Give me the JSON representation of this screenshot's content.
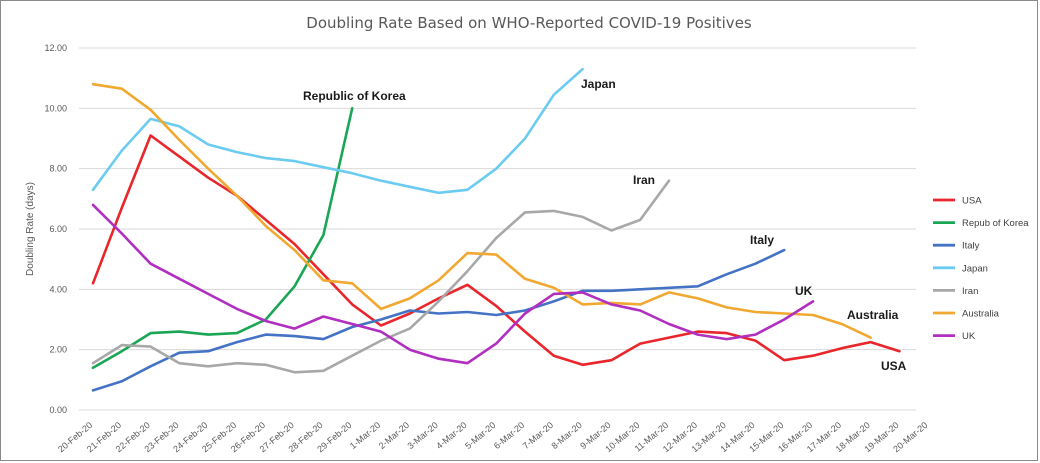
{
  "chart_data": {
    "type": "line",
    "title": "Doubling Rate Based on WHO-Reported COVID-19 Positives",
    "ylabel": "Doubling Rate (days)",
    "xlabel": "",
    "ylim": [
      0,
      12
    ],
    "yticks": [
      "0.00",
      "2.00",
      "4.00",
      "6.00",
      "8.00",
      "10.00",
      "12.00"
    ],
    "grid": true,
    "legend_position": "right",
    "categories": [
      "20-Feb-20",
      "21-Feb-20",
      "22-Feb-20",
      "23-Feb-20",
      "24-Feb-20",
      "25-Feb-20",
      "26-Feb-20",
      "27-Feb-20",
      "28-Feb-20",
      "29-Feb-20",
      "1-Mar-20",
      "2-Mar-20",
      "3-Mar-20",
      "4-Mar-20",
      "5-Mar-20",
      "6-Mar-20",
      "7-Mar-20",
      "8-Mar-20",
      "9-Mar-20",
      "10-Mar-20",
      "11-Mar-20",
      "12-Mar-20",
      "13-Mar-20",
      "14-Mar-20",
      "15-Mar-20",
      "16-Mar-20",
      "17-Mar-20",
      "18-Mar-20",
      "19-Mar-20",
      "20-Mar-20"
    ],
    "series": [
      {
        "name": "USA",
        "legend": "USA",
        "label": "USA",
        "color": "#e8262b",
        "values": [
          4.2,
          6.7,
          9.1,
          8.4,
          7.7,
          7.1,
          6.3,
          5.5,
          4.5,
          3.5,
          2.8,
          3.2,
          3.7,
          4.15,
          3.45,
          2.6,
          1.8,
          1.5,
          1.65,
          2.2,
          2.4,
          2.6,
          2.55,
          2.3,
          1.65,
          1.8,
          2.05,
          2.25,
          1.95,
          null
        ]
      },
      {
        "name": "Repub of Korea",
        "legend": "Repub of Korea",
        "label": "Republic of Korea",
        "color": "#1aa655",
        "values": [
          1.4,
          1.95,
          2.55,
          2.6,
          2.5,
          2.55,
          3.0,
          4.1,
          5.8,
          10.0,
          null,
          null,
          null,
          null,
          null,
          null,
          null,
          null,
          null,
          null,
          null,
          null,
          null,
          null,
          null,
          null,
          null,
          null,
          null,
          null
        ]
      },
      {
        "name": "Italy",
        "legend": "Italy",
        "label": "Italy",
        "color": "#4472c4",
        "values": [
          0.65,
          0.95,
          1.45,
          1.9,
          1.95,
          2.25,
          2.5,
          2.45,
          2.35,
          2.75,
          3.0,
          3.3,
          3.2,
          3.25,
          3.15,
          3.3,
          3.6,
          3.95,
          3.95,
          4.0,
          4.05,
          4.1,
          4.5,
          4.85,
          5.3,
          null,
          null,
          null,
          null,
          null
        ]
      },
      {
        "name": "Japan",
        "legend": "Japan",
        "label": "Japan",
        "color": "#6ccbf0",
        "values": [
          7.3,
          8.6,
          9.65,
          9.4,
          8.8,
          8.55,
          8.35,
          8.25,
          8.05,
          7.85,
          7.6,
          7.4,
          7.2,
          7.3,
          8.0,
          9.0,
          10.45,
          11.3,
          null,
          null,
          null,
          null,
          null,
          null,
          null,
          null,
          null,
          null,
          null,
          null
        ]
      },
      {
        "name": "Iran",
        "legend": "Iran",
        "label": "Iran",
        "color": "#a8a8a8",
        "values": [
          1.55,
          2.15,
          2.1,
          1.55,
          1.45,
          1.55,
          1.5,
          1.25,
          1.3,
          1.8,
          2.3,
          2.7,
          3.6,
          4.6,
          5.7,
          6.55,
          6.6,
          6.4,
          5.95,
          6.3,
          7.6,
          null,
          null,
          null,
          null,
          null,
          null,
          null,
          null,
          null
        ]
      },
      {
        "name": "Australia",
        "legend": "Australia",
        "label": "Australia",
        "color": "#f0a830",
        "values": [
          10.8,
          10.65,
          9.95,
          8.95,
          8.0,
          7.1,
          6.1,
          5.3,
          4.3,
          4.2,
          3.35,
          3.7,
          4.3,
          5.2,
          5.15,
          4.35,
          4.05,
          3.5,
          3.55,
          3.5,
          3.9,
          3.7,
          3.4,
          3.25,
          3.2,
          3.15,
          2.85,
          2.4,
          null,
          null
        ]
      },
      {
        "name": "UK",
        "legend": "UK",
        "label": "UK",
        "color": "#b02ec0",
        "values": [
          6.8,
          5.85,
          4.85,
          4.35,
          3.85,
          3.35,
          2.95,
          2.7,
          3.1,
          2.85,
          2.6,
          2.0,
          1.7,
          1.55,
          2.2,
          3.2,
          3.85,
          3.9,
          3.5,
          3.3,
          2.85,
          2.5,
          2.35,
          2.5,
          3.0,
          3.6,
          null,
          null,
          null,
          null
        ]
      }
    ]
  }
}
